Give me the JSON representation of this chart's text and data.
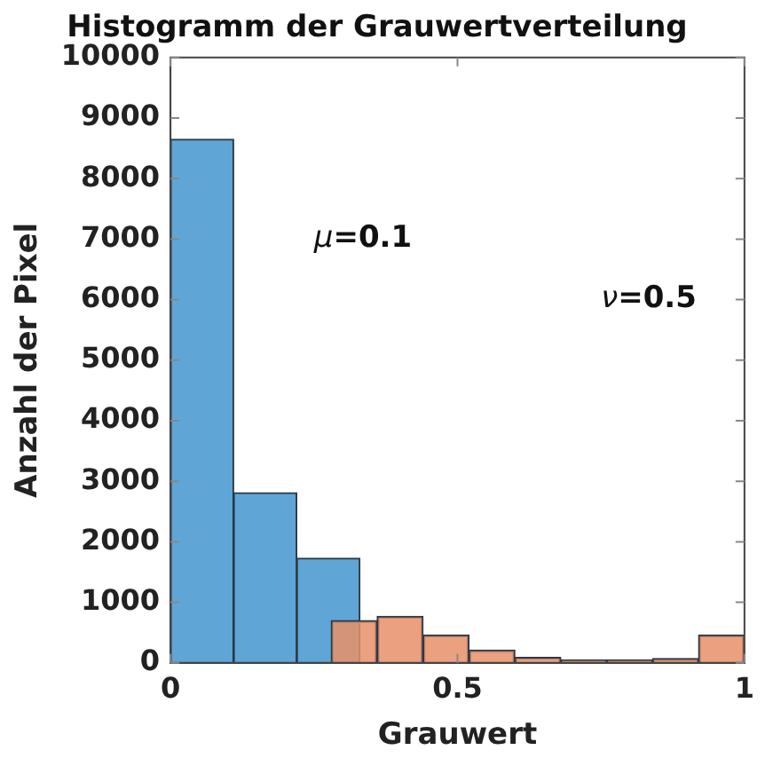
{
  "chart_data": {
    "type": "histogram",
    "title": "Histogramm der Grauwertverteilung",
    "xlabel": "Grauwert",
    "ylabel": "Anzahl der Pixel",
    "bins": [
      0,
      0.11,
      0.22,
      0.33
    ],
    "series": [
      {
        "color": "#5fa6d6",
        "values": [
          8650,
          2810,
          1730
        ]
      },
      {
        "color": "#e8916a",
        "bins": [
          0.28,
          0.36,
          0.44,
          0.52,
          0.6,
          0.68,
          0.76,
          0.84,
          0.92,
          1
        ],
        "values": [
          700,
          770,
          460,
          210,
          90,
          50,
          50,
          70,
          460
        ]
      }
    ],
    "xlim": [
      0,
      1
    ],
    "xticks": [
      0,
      0.5,
      1
    ],
    "ylim": [
      0,
      10000
    ],
    "yticks": [
      0,
      1000,
      2000,
      3000,
      4000,
      5000,
      6000,
      7000,
      8000,
      9000,
      10000
    ],
    "annotations": [
      "μ=0.1",
      "ν=0.5"
    ]
  }
}
